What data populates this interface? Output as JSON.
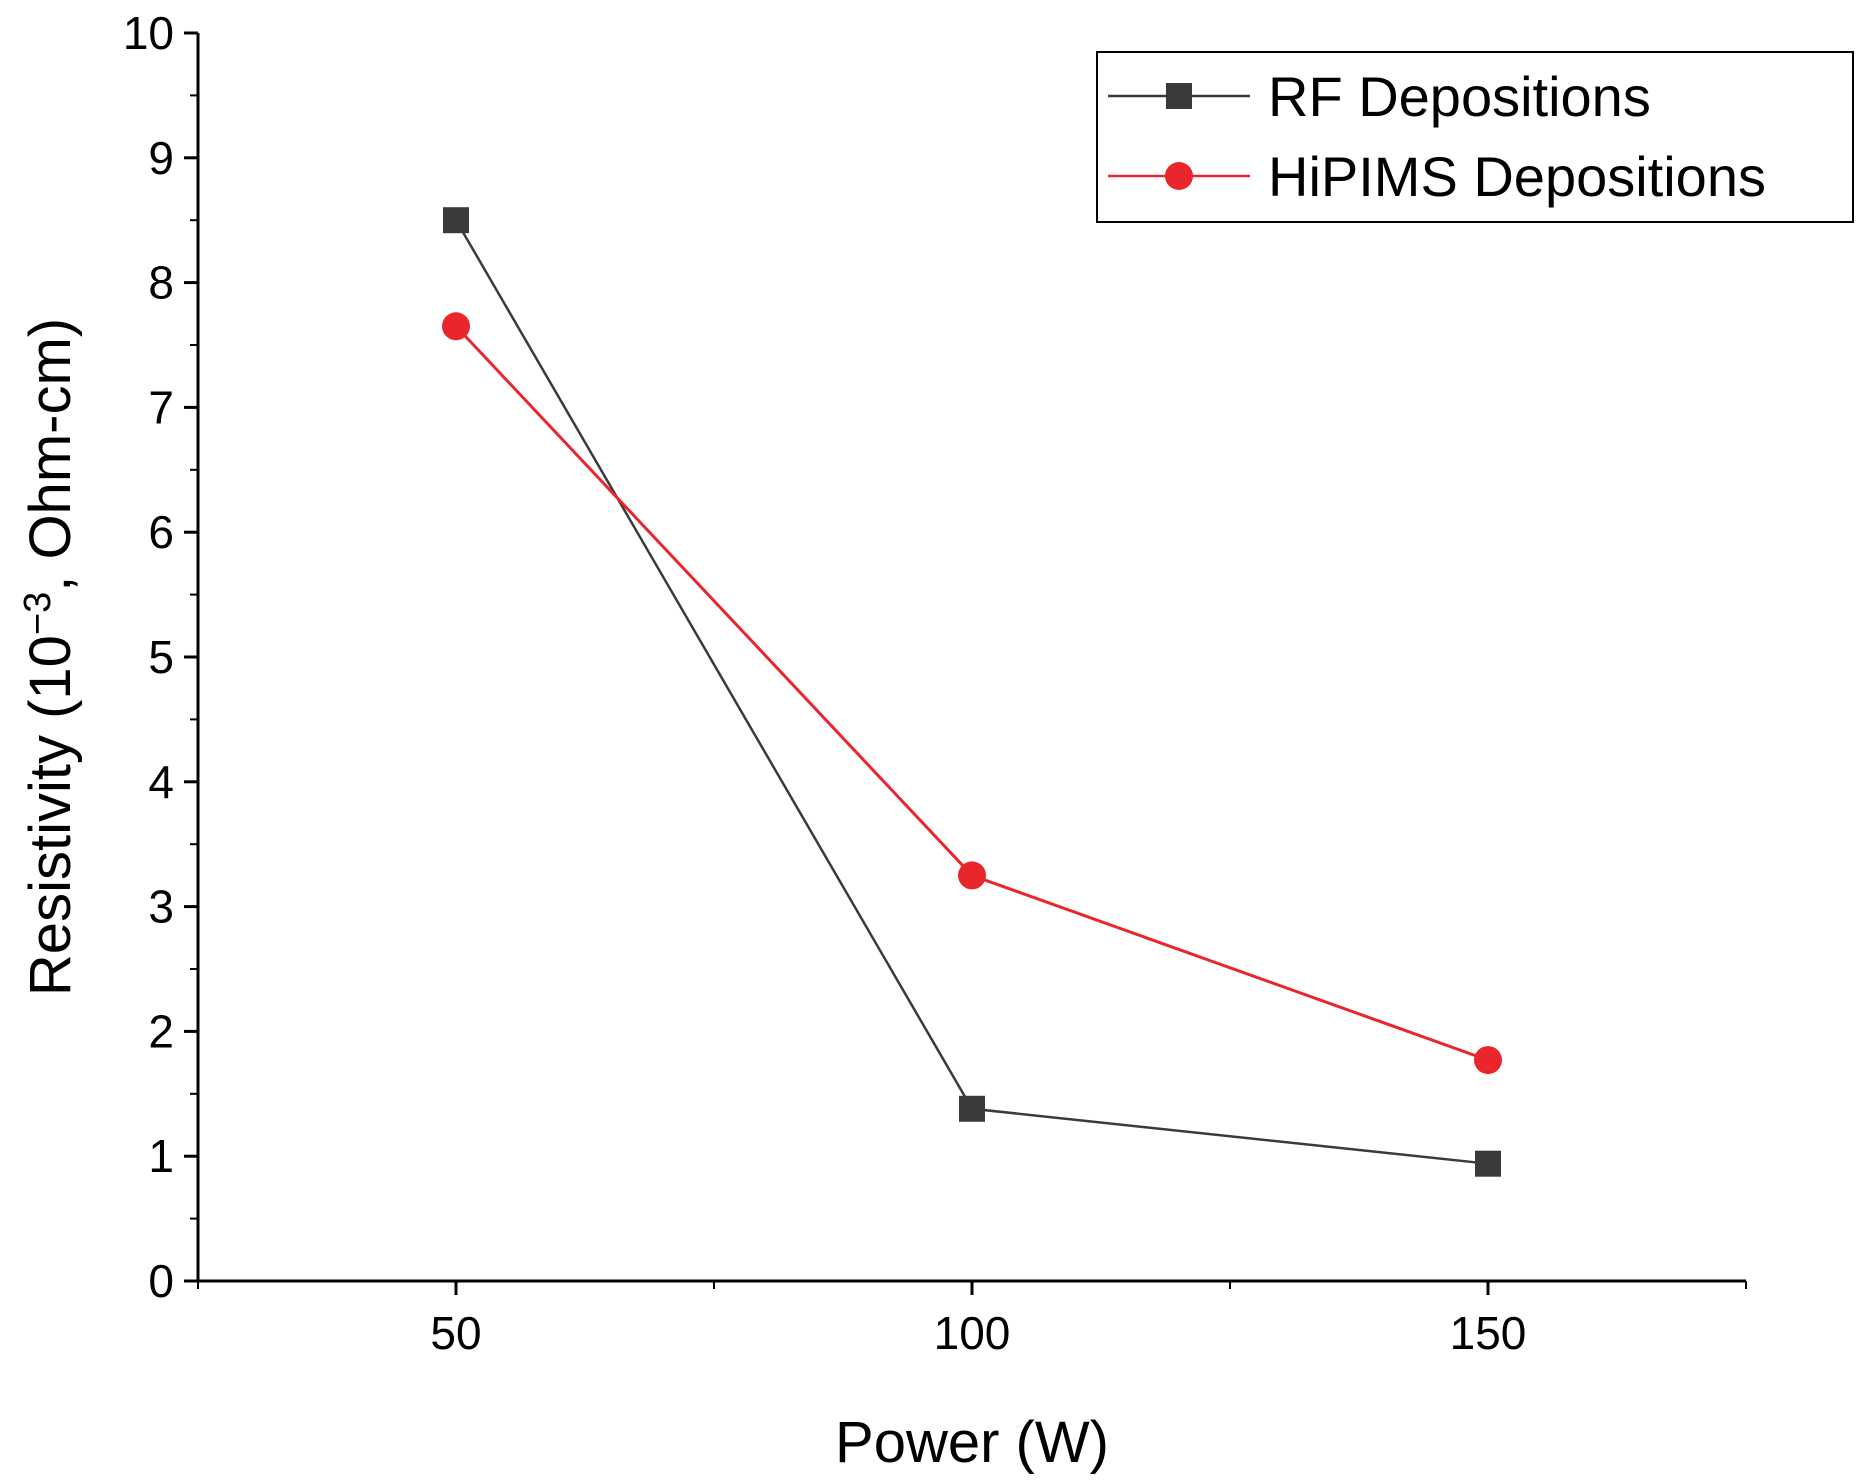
{
  "chart_data": {
    "type": "line",
    "title": "",
    "xlabel": "Power (W)",
    "ylabel": {
      "prefix": "Resistivity (10",
      "superscript": "−3",
      "suffix": ", Ohm-cm)"
    },
    "x": [
      50,
      100,
      150
    ],
    "xlim": [
      25,
      175
    ],
    "ylim": [
      0,
      10
    ],
    "x_ticks": [
      50,
      100,
      150
    ],
    "y_ticks": [
      0,
      1,
      2,
      3,
      4,
      5,
      6,
      7,
      8,
      9,
      10
    ],
    "grid": false,
    "legend_position": "top-right",
    "series": [
      {
        "name": "RF Depositions",
        "marker": "square",
        "color": "#3a3a3a",
        "values": [
          8.5,
          1.38,
          0.94
        ]
      },
      {
        "name": "HiPIMS Depositions",
        "marker": "circle",
        "color": "#e8262b",
        "values": [
          7.65,
          3.25,
          1.77
        ]
      }
    ]
  }
}
